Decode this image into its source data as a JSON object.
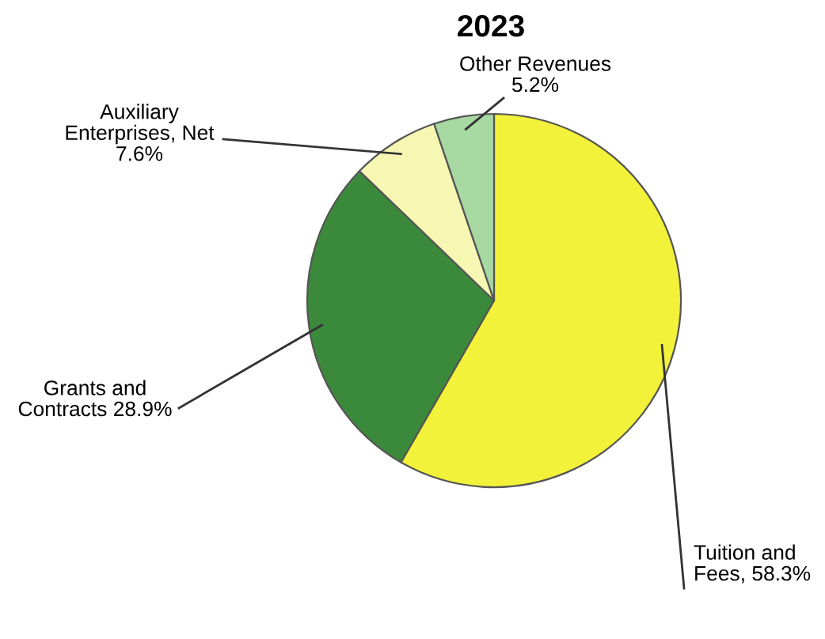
{
  "chart_data": {
    "type": "pie",
    "title": "2023",
    "categories": [
      "Tuition and\nFees",
      "Grants and\nContracts",
      "Auxiliary\nEnterprises, Net",
      "Other Revenues"
    ],
    "values": [
      58.3,
      28.9,
      7.6,
      5.2
    ],
    "colors": [
      "#f2f23a",
      "#3b8a3b",
      "#f7f7b4",
      "#a9d9a3"
    ],
    "value_labels": [
      "58.3%",
      "28.9%",
      "7.6%",
      "5.2%"
    ]
  }
}
